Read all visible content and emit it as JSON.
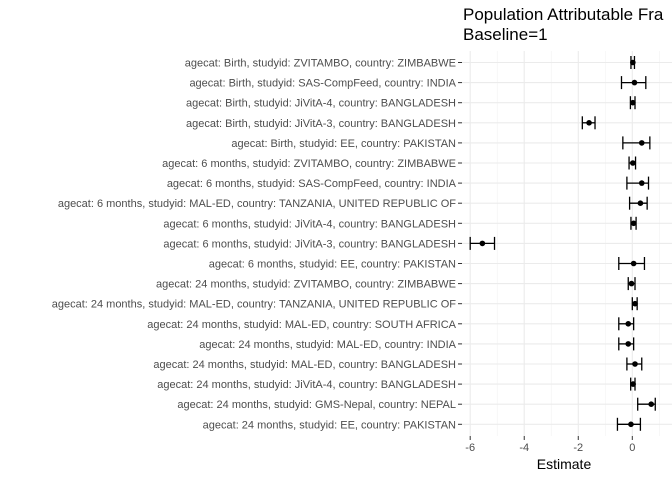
{
  "chart_data": {
    "type": "forest",
    "title": [
      "Population Attributable Fra",
      "Baseline=1"
    ],
    "xlabel": "Estimate",
    "ylabel": "",
    "xlim": [
      -6.25,
      1.25
    ],
    "xticks": [
      -6,
      -4,
      -2,
      0
    ],
    "grid": true,
    "categories": [
      "agecat: Birth, studyid: ZVITAMBO, country: ZIMBABWE",
      "agecat: Birth, studyid: SAS-CompFeed, country: INDIA",
      "agecat: Birth, studyid: JiVitA-4, country: BANGLADESH",
      "agecat: Birth, studyid: JiVitA-3, country: BANGLADESH",
      "agecat: Birth, studyid: EE, country: PAKISTAN",
      "agecat: 6 months, studyid: ZVITAMBO, country: ZIMBABWE",
      "agecat: 6 months, studyid: SAS-CompFeed, country: INDIA",
      "agecat: 6 months, studyid: MAL-ED, country: TANZANIA, UNITED REPUBLIC OF",
      "agecat: 6 months, studyid: JiVitA-4, country: BANGLADESH",
      "agecat: 6 months, studyid: JiVitA-3, country: BANGLADESH",
      "agecat: 6 months, studyid: EE, country: PAKISTAN",
      "agecat: 24 months, studyid: ZVITAMBO, country: ZIMBABWE",
      "agecat: 24 months, studyid: MAL-ED, country: TANZANIA, UNITED REPUBLIC OF",
      "agecat: 24 months, studyid: MAL-ED, country: SOUTH AFRICA",
      "agecat: 24 months, studyid: MAL-ED, country: INDIA",
      "agecat: 24 months, studyid: MAL-ED, country: BANGLADESH",
      "agecat: 24 months, studyid: JiVitA-4, country: BANGLADESH",
      "agecat: 24 months, studyid: GMS-Nepal, country: NEPAL",
      "agecat: 24 months, studyid: EE, country: PAKISTAN"
    ],
    "estimates": [
      0.02,
      0.08,
      0.02,
      -1.6,
      0.35,
      0.02,
      0.35,
      0.3,
      0.05,
      -5.55,
      0.05,
      -0.03,
      0.1,
      -0.15,
      -0.15,
      0.1,
      0.03,
      0.7,
      -0.05
    ],
    "lower": [
      -0.05,
      -0.4,
      -0.07,
      -1.85,
      -0.35,
      -0.12,
      -0.2,
      -0.1,
      -0.05,
      -6.0,
      -0.5,
      -0.15,
      0.0,
      -0.5,
      -0.5,
      -0.2,
      -0.06,
      0.2,
      -0.55
    ],
    "upper": [
      0.08,
      0.5,
      0.1,
      -1.38,
      0.65,
      0.12,
      0.6,
      0.55,
      0.14,
      -5.1,
      0.45,
      0.1,
      0.18,
      0.05,
      0.05,
      0.35,
      0.1,
      0.85,
      0.3
    ]
  }
}
